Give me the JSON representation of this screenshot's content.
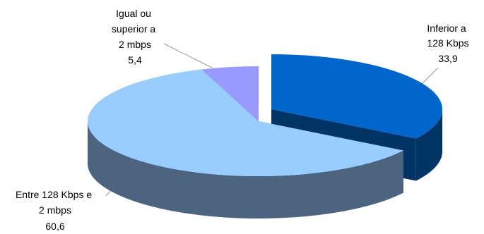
{
  "chart_data": {
    "type": "pie",
    "style": "3d-exploded",
    "title": "",
    "slices": [
      {
        "key": "inferior",
        "label_lines": [
          "Inferior a",
          "128 Kbps"
        ],
        "value_label": "33,9",
        "value": 33.9,
        "top_color": "#0066CC",
        "side_color": "#003366"
      },
      {
        "key": "entre",
        "label_lines": [
          "Entre 128 Kbps e",
          "2 mbps"
        ],
        "value_label": "60,6",
        "value": 60.6,
        "top_color": "#99CCFF",
        "side_color": "#4D6480"
      },
      {
        "key": "igual",
        "label_lines": [
          "Igual ou",
          "superior a",
          "2 mbps"
        ],
        "value_label": "5,4",
        "value": 5.4,
        "top_color": "#9999FF",
        "side_color": "#4D4D80"
      }
    ]
  }
}
